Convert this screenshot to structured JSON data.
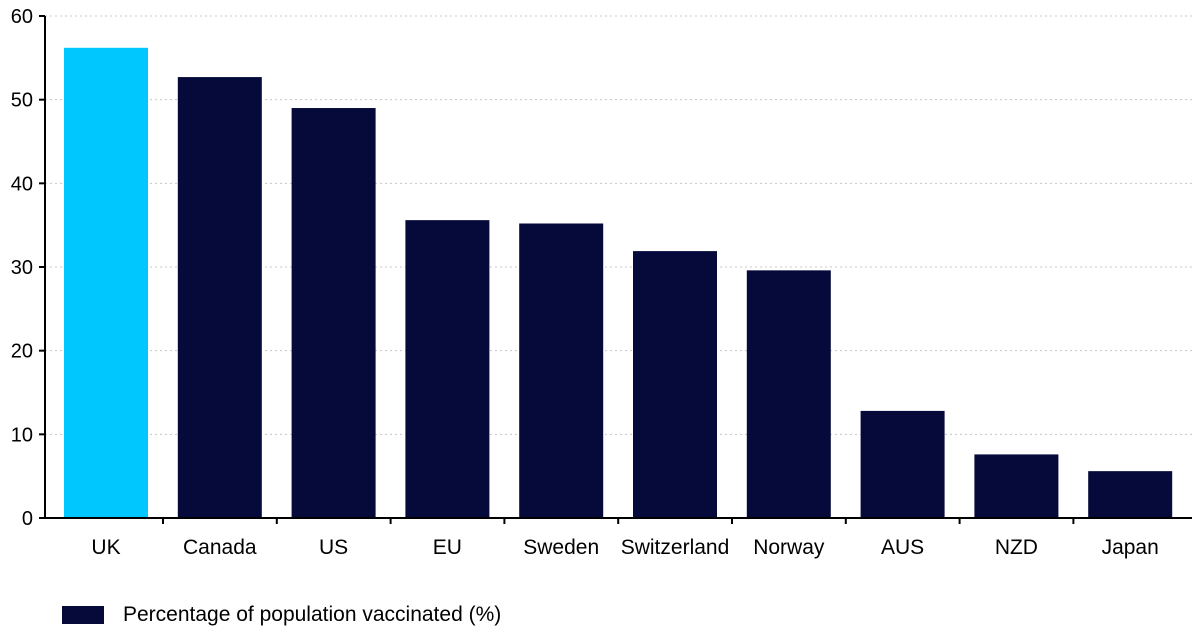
{
  "chart_data": {
    "type": "bar",
    "categories": [
      "UK",
      "Canada",
      "US",
      "EU",
      "Sweden",
      "Switzerland",
      "Norway",
      "AUS",
      "NZD",
      "Japan"
    ],
    "series": [
      {
        "name": "Percentage of population vaccinated (%)",
        "values": [
          56.2,
          52.7,
          49.0,
          35.6,
          35.2,
          31.9,
          29.6,
          12.8,
          7.6,
          5.6
        ],
        "color": "#050a3a",
        "highlight_color": "#00c8ff",
        "highlight_category": "UK"
      }
    ],
    "y_ticks": [
      0,
      10,
      20,
      30,
      40,
      50,
      60
    ],
    "ylim": [
      0,
      60
    ],
    "grid": "horizontal dotted",
    "legend": "bottom-left"
  }
}
